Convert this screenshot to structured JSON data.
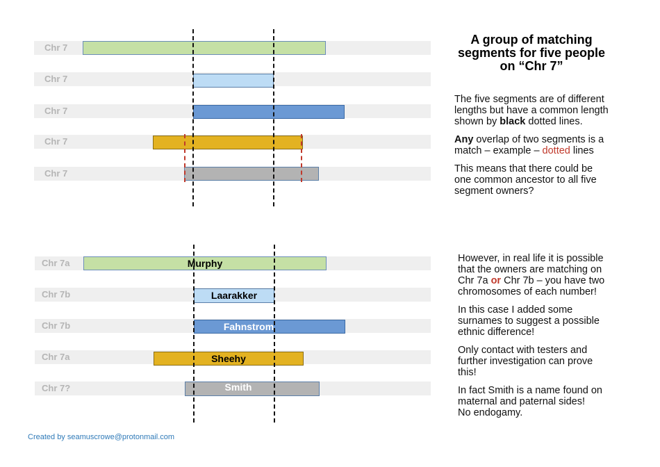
{
  "top_panel": {
    "rows": [
      {
        "label": "Chr 7",
        "name": ""
      },
      {
        "label": "Chr 7",
        "name": ""
      },
      {
        "label": "Chr 7",
        "name": ""
      },
      {
        "label": "Chr 7",
        "name": ""
      },
      {
        "label": "Chr 7",
        "name": ""
      }
    ]
  },
  "bottom_panel": {
    "rows": [
      {
        "label": "Chr 7a",
        "name": "Murphy"
      },
      {
        "label": "Chr 7b",
        "name": "Laarakker"
      },
      {
        "label": "Chr 7b",
        "name": "Fahnstrom"
      },
      {
        "label": "Chr 7a",
        "name": "Sheehy"
      },
      {
        "label": "Chr 7?",
        "name": "Smith"
      }
    ]
  },
  "colors": {
    "green": "#c5e0a5",
    "light_blue": "#bddcf5",
    "blue": "#6b99d4",
    "gold": "#e3b221",
    "gray": "#b3b3b3",
    "red_accent": "#c0392b"
  },
  "title": {
    "line1": "A group of matching",
    "line2": "segments for five people",
    "line3": "on “Chr 7”"
  },
  "text_top": {
    "p1_l1": "The five segments are of different",
    "p1_l2": "lengths but have a common length",
    "p1_l3_a": "shown by ",
    "p1_l3_b": "black",
    "p1_l3_c": " dotted lines.",
    "p2_l1_a": "Any",
    "p2_l1_b": " overlap of two segments is a",
    "p2_l2_a": "match – example – ",
    "p2_l2_b": "dotted",
    "p2_l2_c": " lines",
    "p3_l1": "This means that there could be",
    "p3_l2": "one common ancestor to all five",
    "p3_l3": "segment owners?"
  },
  "text_bottom": {
    "p1_l1": "However, in real life it is possible",
    "p1_l2": "that the owners are matching on",
    "p1_l3_a": "Chr 7a ",
    "p1_l3_b": "or",
    "p1_l3_c": " Chr 7b – you have two",
    "p1_l4": "chromosomes of each number!",
    "p2_l1": "In this case I added some",
    "p2_l2": "surnames to suggest a possible",
    "p2_l3": "ethnic difference!",
    "p3_l1": "Only contact with testers and",
    "p3_l2": "further investigation can prove",
    "p3_l3": "this!",
    "p4_l1": "In fact Smith is a name found on",
    "p4_l2": "maternal and paternal sides!",
    "p4_l3": "No  endogamy."
  },
  "footer": "Created by seamuscrowe@protonmail.com"
}
